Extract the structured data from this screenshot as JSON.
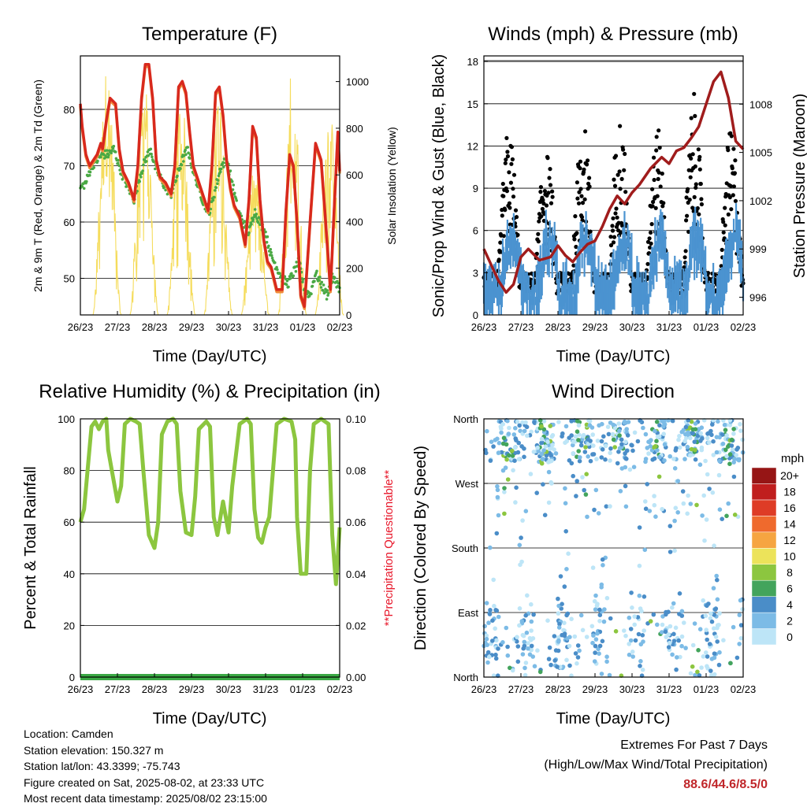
{
  "colors": {
    "temp_red": "#d8291d",
    "temp_orange": "#f08a3a",
    "dewpoint_green": "#4aa944",
    "solar_yellow": "#f5dc5c",
    "wind_blue": "#4b93d0",
    "gust_black": "#000000",
    "pressure_maroon": "#a01c1c",
    "rh_green": "#8cc63f",
    "precip_green": "#3aa844",
    "precip_note_red": "#e8192c"
  },
  "chart_data": [
    {
      "id": "temperature",
      "type": "line",
      "title": "Temperature (F)",
      "xlabel": "Time (Day/UTC)",
      "ylabel": "2m & 9m T (Red, Orange) & 2m Td (Green)",
      "y2label": "Solar Insolation (Yellow)",
      "xticks": [
        "26/23",
        "27/23",
        "28/23",
        "29/23",
        "30/23",
        "31/23",
        "01/23",
        "02/23"
      ],
      "xlim": [
        0,
        7
      ],
      "ylim": [
        43.5,
        89.5
      ],
      "yticks": [
        50,
        60,
        70,
        80
      ],
      "y2lim": [
        0,
        1110
      ],
      "y2ticks": [
        0,
        200,
        400,
        600,
        800,
        1000
      ],
      "grid": "horizontal",
      "series": [
        {
          "name": "2m T",
          "color": "#d8291d",
          "x": [
            0,
            0.05,
            0.15,
            0.25,
            0.35,
            0.45,
            0.55,
            0.6,
            0.7,
            0.8,
            0.95,
            1.05,
            1.15,
            1.3,
            1.45,
            1.55,
            1.65,
            1.75,
            1.85,
            1.95,
            2.05,
            2.15,
            2.3,
            2.45,
            2.55,
            2.65,
            2.75,
            2.85,
            2.95,
            3.05,
            3.15,
            3.3,
            3.45,
            3.55,
            3.65,
            3.75,
            3.85,
            3.95,
            4.05,
            4.15,
            4.3,
            4.45,
            4.55,
            4.65,
            4.75,
            4.85,
            4.95,
            5.05,
            5.15,
            5.3,
            5.45,
            5.55,
            5.65,
            5.75,
            5.85,
            5.95,
            6.05,
            6.2,
            6.35,
            6.5,
            6.6,
            6.75,
            6.85,
            6.95,
            7
          ],
          "y": [
            81,
            77,
            72,
            70,
            71,
            72,
            74,
            73,
            78,
            82,
            81,
            73,
            69,
            67,
            64,
            70,
            82,
            88,
            88,
            82,
            71,
            68,
            67,
            65,
            70,
            84,
            85,
            83,
            76,
            70,
            68,
            65,
            62,
            70,
            83,
            84,
            79,
            71,
            66,
            63,
            61,
            56,
            64,
            77,
            75,
            64,
            57,
            53,
            52,
            48,
            48,
            62,
            72,
            70,
            60,
            47,
            45,
            60,
            74,
            71,
            62,
            48,
            62,
            76,
            69
          ]
        },
        {
          "name": "2m Td",
          "color": "#4aa944",
          "x": [
            0,
            0.15,
            0.3,
            0.45,
            0.6,
            0.75,
            0.9,
            1.0,
            1.15,
            1.3,
            1.45,
            1.6,
            1.75,
            1.9,
            2.0,
            2.15,
            2.3,
            2.45,
            2.6,
            2.75,
            2.9,
            3.05,
            3.2,
            3.35,
            3.5,
            3.65,
            3.8,
            3.95,
            4.1,
            4.25,
            4.4,
            4.55,
            4.7,
            4.85,
            5.0,
            5.15,
            5.3,
            5.45,
            5.6,
            5.75,
            5.9,
            6.05,
            6.2,
            6.35,
            6.5,
            6.65,
            6.8,
            6.95,
            7
          ],
          "y": [
            66,
            67,
            70,
            71,
            72,
            72,
            73,
            71,
            68,
            66,
            64,
            68,
            71,
            73,
            70,
            68,
            66,
            65,
            68,
            71,
            73,
            69,
            66,
            63,
            62,
            66,
            70,
            71,
            67,
            62,
            60,
            58,
            62,
            60,
            58,
            54,
            52,
            50,
            49,
            51,
            53,
            48,
            47,
            51,
            49,
            47,
            50,
            49,
            48
          ]
        }
      ],
      "solar_peaks": [
        {
          "x": 0.72,
          "w": 1070
        },
        {
          "x": 1.72,
          "w": 1030
        },
        {
          "x": 2.72,
          "w": 950
        },
        {
          "x": 3.72,
          "w": 1000
        },
        {
          "x": 4.72,
          "w": 650
        },
        {
          "x": 5.72,
          "w": 1080
        },
        {
          "x": 6.72,
          "w": 900
        }
      ]
    },
    {
      "id": "winds",
      "type": "scatter",
      "title": "Winds (mph) & Pressure (mb)",
      "xlabel": "Time (Day/UTC)",
      "ylabel": "Sonic/Prop Wind & Gust (Blue, Black)",
      "y2label": "Station Pressure (Maroon)",
      "xticks": [
        "26/23",
        "27/23",
        "28/23",
        "29/23",
        "30/23",
        "31/23",
        "01/23",
        "02/23"
      ],
      "xlim": [
        0,
        7
      ],
      "ylim": [
        0,
        18.4
      ],
      "yticks": [
        0,
        3,
        6,
        9,
        12,
        15,
        18
      ],
      "y2lim": [
        994.9,
        1011.0
      ],
      "y2ticks": [
        996,
        999,
        1002,
        1005,
        1008
      ],
      "grid": "horizontal",
      "gust_daily_peak": [
        14,
        13,
        15,
        15,
        14,
        16,
        14,
        11
      ],
      "pressure": {
        "name": "Station Pressure",
        "color": "#a01c1c",
        "x": [
          0,
          0.2,
          0.4,
          0.6,
          0.8,
          1.0,
          1.2,
          1.5,
          1.8,
          2.0,
          2.2,
          2.4,
          2.6,
          2.8,
          3.0,
          3.2,
          3.4,
          3.6,
          3.8,
          4.0,
          4.2,
          4.5,
          4.8,
          5.0,
          5.2,
          5.4,
          5.6,
          5.8,
          6.0,
          6.2,
          6.4,
          6.6,
          6.8,
          7.0
        ],
        "y": [
          999,
          998,
          997,
          996.3,
          996.8,
          998.5,
          999,
          998.3,
          998.5,
          999.2,
          998.6,
          998.2,
          998.8,
          999.3,
          999.5,
          1000.4,
          1001.5,
          1002.3,
          1001.8,
          1002.5,
          1003,
          1004,
          1004.7,
          1004.3,
          1005.1,
          1005.3,
          1005.9,
          1006.6,
          1008,
          1009.4,
          1010,
          1008.4,
          1005.7,
          1005.2
        ]
      }
    },
    {
      "id": "humidity",
      "type": "line",
      "title": "Relative Humidity (%) & Precipitation (in)",
      "xlabel": "Time (Day/UTC)",
      "ylabel": "Percent & Total Rainfall",
      "y2label": "**Precipitation Questionable**",
      "xticks": [
        "26/23",
        "27/23",
        "28/23",
        "29/23",
        "30/23",
        "31/23",
        "01/23",
        "02/23"
      ],
      "xlim": [
        0,
        7
      ],
      "ylim": [
        0,
        100
      ],
      "yticks": [
        0,
        20,
        40,
        60,
        80,
        100
      ],
      "y2lim": [
        0,
        0.1
      ],
      "y2ticks": [
        "0.00",
        "0.02",
        "0.04",
        "0.06",
        "0.08",
        "0.10"
      ],
      "grid": "horizontal",
      "series": [
        {
          "name": "RH",
          "color": "#8cc63f",
          "x": [
            0,
            0.1,
            0.3,
            0.4,
            0.5,
            0.6,
            0.7,
            0.75,
            0.85,
            1.0,
            1.1,
            1.2,
            1.35,
            1.5,
            1.6,
            1.7,
            1.85,
            2.0,
            2.1,
            2.2,
            2.35,
            2.5,
            2.6,
            2.7,
            2.85,
            3.0,
            3.1,
            3.2,
            3.4,
            3.5,
            3.6,
            3.7,
            3.85,
            4.0,
            4.1,
            4.3,
            4.5,
            4.6,
            4.7,
            4.8,
            4.9,
            5.0,
            5.1,
            5.3,
            5.5,
            5.7,
            5.8,
            5.85,
            5.95,
            6.1,
            6.2,
            6.3,
            6.5,
            6.7,
            6.8,
            6.9,
            7.0
          ],
          "y": [
            60,
            65,
            97,
            99,
            96,
            99,
            100,
            88,
            80,
            68,
            74,
            98,
            100,
            99,
            98,
            80,
            55,
            50,
            60,
            94,
            99,
            100,
            98,
            72,
            56,
            55,
            70,
            96,
            99,
            97,
            62,
            55,
            68,
            56,
            74,
            98,
            100,
            98,
            65,
            54,
            52,
            58,
            62,
            98,
            100,
            99,
            92,
            62,
            40,
            40,
            80,
            98,
            100,
            98,
            55,
            36,
            58
          ]
        },
        {
          "name": "Total Precipitation",
          "color": "#3aa844",
          "x": [
            0,
            7
          ],
          "y": [
            0.0,
            0.0
          ]
        }
      ]
    },
    {
      "id": "direction",
      "type": "scatter",
      "title": "Wind Direction",
      "xlabel": "Time (Day/UTC)",
      "ylabel": "Direction (Colored By Speed)",
      "xticks": [
        "26/23",
        "27/23",
        "28/23",
        "29/23",
        "30/23",
        "31/23",
        "01/23",
        "02/23"
      ],
      "xlim": [
        0,
        7
      ],
      "ylim": [
        0,
        360
      ],
      "ytick_labels": [
        "North",
        "East",
        "South",
        "West",
        "North"
      ],
      "grid": "horizontal",
      "colorbar": {
        "title": "mph",
        "labels": [
          "0",
          "2",
          "4",
          "6",
          "8",
          "10",
          "12",
          "14",
          "16",
          "18",
          "20+"
        ],
        "colors": [
          "#bde5f7",
          "#7cbbe6",
          "#4a8dc8",
          "#43a45c",
          "#8cc63f",
          "#ece35a",
          "#f6a541",
          "#ef6a2d",
          "#de3c26",
          "#c01e1e",
          "#961515"
        ]
      }
    }
  ],
  "info": {
    "location": "Location: Camden",
    "elevation": "Station elevation: 150.327 m",
    "latlon": "Station lat/lon: 43.3399; -75.743",
    "created": "Figure created on Sat, 2025-08-02, at 23:33 UTC",
    "timestamp": "Most recent data timestamp: 2025/08/02 23:15:00"
  },
  "extremes": {
    "line1": "Extremes For Past 7 Days",
    "line2": "(High/Low/Max Wind/Total Precipitation)",
    "value": "88.6/44.6/8.5/0"
  }
}
